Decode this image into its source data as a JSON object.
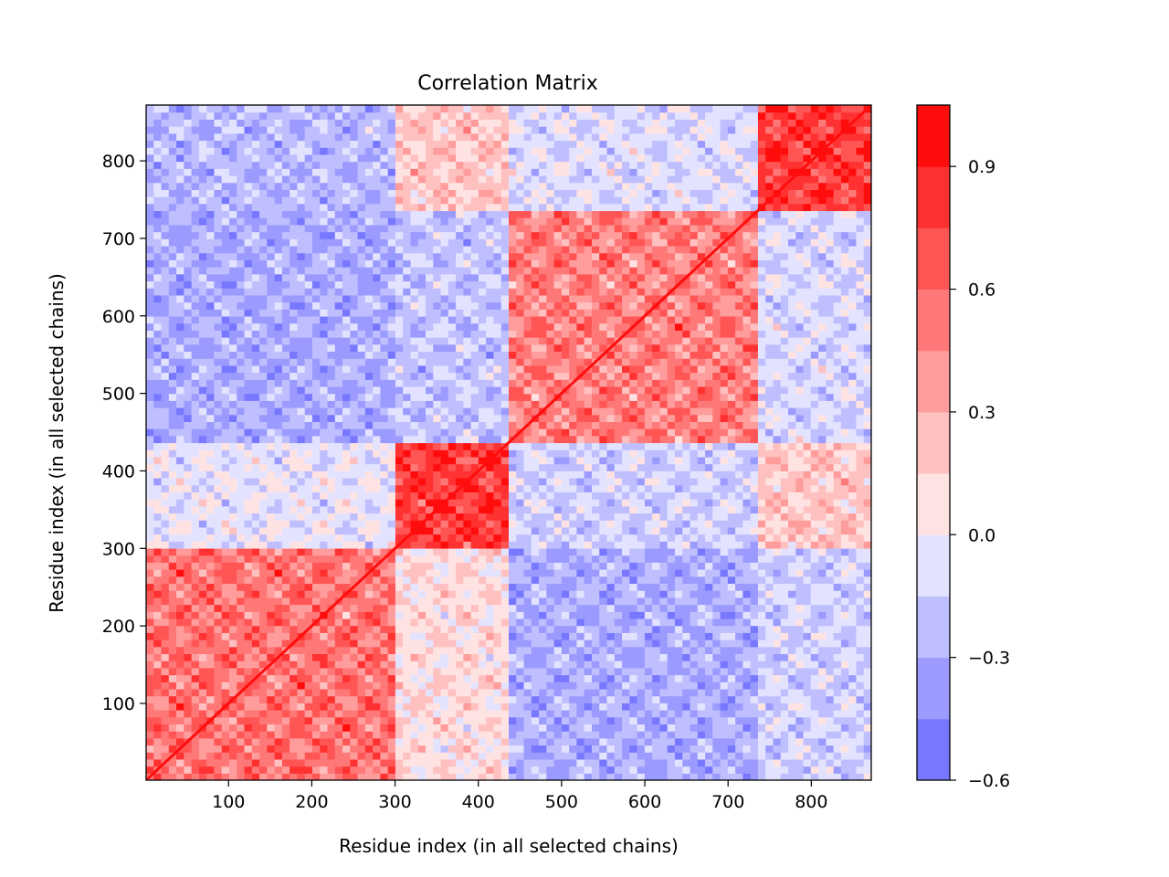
{
  "chart_data": {
    "type": "heatmap",
    "title": "Correlation Matrix",
    "xlabel": "Residue index (in all selected chains)",
    "ylabel": "Residue index (in all selected chains)",
    "xlim": [
      1,
      872
    ],
    "ylim": [
      1,
      872
    ],
    "x_ticks": [
      100,
      200,
      300,
      400,
      500,
      600,
      700,
      800
    ],
    "y_ticks": [
      100,
      200,
      300,
      400,
      500,
      600,
      700,
      800
    ],
    "colorbar": {
      "range": [
        -0.6,
        1.05
      ],
      "levels": [
        -0.6,
        -0.45,
        -0.3,
        -0.15,
        0.0,
        0.15,
        0.3,
        0.45,
        0.6,
        0.75,
        0.9,
        1.05
      ],
      "ticks": [
        -0.6,
        -0.3,
        0.0,
        0.3,
        0.6,
        0.9
      ],
      "tick_labels": [
        "−0.6",
        "−0.3",
        "0.0",
        "0.3",
        "0.6",
        "0.9"
      ],
      "colormap": "bwr",
      "band_colors": [
        "#7777ff",
        "#9b9bff",
        "#bfbfff",
        "#e3e3ff",
        "#ffe3e3",
        "#ffc0c0",
        "#ff9c9c",
        "#ff7878",
        "#ff5555",
        "#ff3131",
        "#ff0d0d"
      ]
    },
    "blocks": [
      {
        "rows": [
          1,
          300
        ],
        "cols": [
          1,
          300
        ],
        "value": 0.55
      },
      {
        "rows": [
          1,
          300
        ],
        "cols": [
          440,
          740
        ],
        "value": -0.3
      },
      {
        "rows": [
          1,
          300
        ],
        "cols": [
          740,
          872
        ],
        "value": -0.15
      },
      {
        "rows": [
          1,
          300
        ],
        "cols": [
          300,
          440
        ],
        "value": 0.1
      },
      {
        "rows": [
          300,
          440
        ],
        "cols": [
          300,
          440
        ],
        "value": 0.8
      },
      {
        "rows": [
          300,
          440
        ],
        "cols": [
          1,
          300
        ],
        "value": -0.05
      },
      {
        "rows": [
          300,
          440
        ],
        "cols": [
          440,
          740
        ],
        "value": -0.15
      },
      {
        "rows": [
          300,
          440
        ],
        "cols": [
          740,
          872
        ],
        "value": 0.2
      },
      {
        "rows": [
          440,
          740
        ],
        "cols": [
          440,
          740
        ],
        "value": 0.5
      },
      {
        "rows": [
          440,
          740
        ],
        "cols": [
          1,
          300
        ],
        "value": -0.3
      },
      {
        "rows": [
          440,
          740
        ],
        "cols": [
          300,
          440
        ],
        "value": -0.2
      },
      {
        "rows": [
          440,
          740
        ],
        "cols": [
          740,
          872
        ],
        "value": -0.12
      },
      {
        "rows": [
          740,
          872
        ],
        "cols": [
          740,
          872
        ],
        "value": 0.8
      },
      {
        "rows": [
          740,
          872
        ],
        "cols": [
          1,
          300
        ],
        "value": -0.25
      },
      {
        "rows": [
          740,
          872
        ],
        "cols": [
          300,
          440
        ],
        "value": 0.2
      },
      {
        "rows": [
          740,
          872
        ],
        "cols": [
          440,
          740
        ],
        "value": -0.1
      }
    ],
    "diagonal_value": 1.0
  }
}
